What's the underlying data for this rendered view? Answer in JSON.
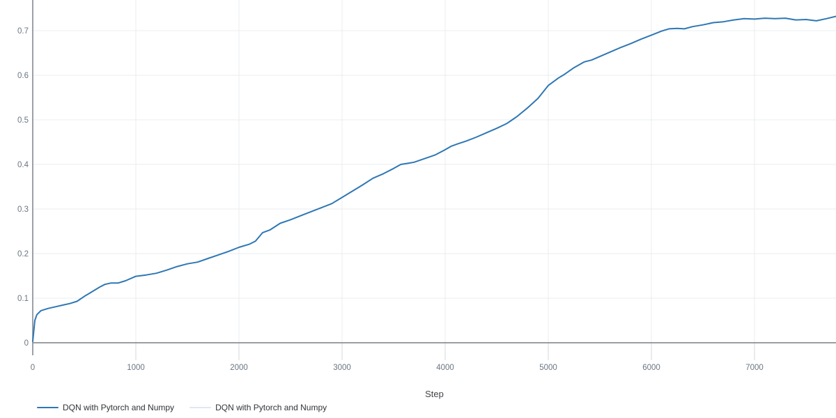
{
  "chart_data": {
    "type": "line",
    "title": "",
    "xlabel": "Step",
    "ylabel": "",
    "xlim": [
      0,
      7790
    ],
    "ylim": [
      0,
      0.77
    ],
    "grid": true,
    "legend_position": "bottom-left",
    "x_ticks": [
      0,
      1000,
      2000,
      3000,
      4000,
      5000,
      6000,
      7000
    ],
    "x_tick_labels": [
      "0",
      "1000",
      "2000",
      "3000",
      "4000",
      "5000",
      "6000",
      "7000"
    ],
    "y_ticks": [
      0,
      0.1,
      0.2,
      0.3,
      0.4,
      0.5,
      0.6,
      0.7
    ],
    "y_tick_labels": [
      "0",
      "0.1",
      "0.2",
      "0.3",
      "0.4",
      "0.5",
      "0.6",
      "0.7"
    ],
    "x": [
      0,
      20,
      40,
      80,
      150,
      225,
      300,
      360,
      430,
      500,
      550,
      600,
      650,
      700,
      760,
      830,
      900,
      1000,
      1100,
      1200,
      1300,
      1400,
      1500,
      1600,
      1700,
      1800,
      1900,
      2000,
      2100,
      2160,
      2230,
      2300,
      2400,
      2500,
      2600,
      2700,
      2800,
      2900,
      3000,
      3100,
      3200,
      3300,
      3400,
      3500,
      3570,
      3650,
      3700,
      3800,
      3900,
      4000,
      4060,
      4120,
      4200,
      4300,
      4400,
      4500,
      4600,
      4650,
      4700,
      4800,
      4900,
      5000,
      5100,
      5150,
      5250,
      5350,
      5420,
      5500,
      5600,
      5700,
      5800,
      5900,
      6000,
      6100,
      6170,
      6250,
      6320,
      6400,
      6500,
      6600,
      6700,
      6800,
      6900,
      7000,
      7100,
      7200,
      7300,
      7400,
      7500,
      7600,
      7700,
      7790
    ],
    "values": [
      0.003,
      0.05,
      0.063,
      0.072,
      0.077,
      0.081,
      0.085,
      0.088,
      0.093,
      0.104,
      0.111,
      0.118,
      0.125,
      0.131,
      0.134,
      0.134,
      0.139,
      0.149,
      0.152,
      0.156,
      0.163,
      0.171,
      0.177,
      0.181,
      0.189,
      0.197,
      0.205,
      0.214,
      0.221,
      0.228,
      0.247,
      0.253,
      0.268,
      0.276,
      0.285,
      0.294,
      0.303,
      0.312,
      0.326,
      0.34,
      0.354,
      0.369,
      0.379,
      0.391,
      0.4,
      0.403,
      0.405,
      0.413,
      0.421,
      0.433,
      0.441,
      0.446,
      0.452,
      0.461,
      0.471,
      0.481,
      0.492,
      0.5,
      0.508,
      0.527,
      0.548,
      0.577,
      0.594,
      0.601,
      0.617,
      0.63,
      0.634,
      0.642,
      0.652,
      0.662,
      0.671,
      0.681,
      0.69,
      0.699,
      0.704,
      0.705,
      0.704,
      0.709,
      0.713,
      0.718,
      0.72,
      0.724,
      0.727,
      0.726,
      0.728,
      0.727,
      0.728,
      0.724,
      0.725,
      0.722,
      0.727,
      0.732
    ],
    "series_color": "#2e77b4"
  },
  "legend": {
    "items": [
      {
        "label": "DQN with Pytorch and Numpy",
        "color": "#2e77b4"
      },
      {
        "label": "DQN with Pytorch and Numpy",
        "color": "#dce8f4"
      }
    ]
  },
  "colors": {
    "axis_line": "#8c9096",
    "gridline": "#e9ecef",
    "tick_mark": "#d4d7da",
    "tick_label": "#697683"
  }
}
